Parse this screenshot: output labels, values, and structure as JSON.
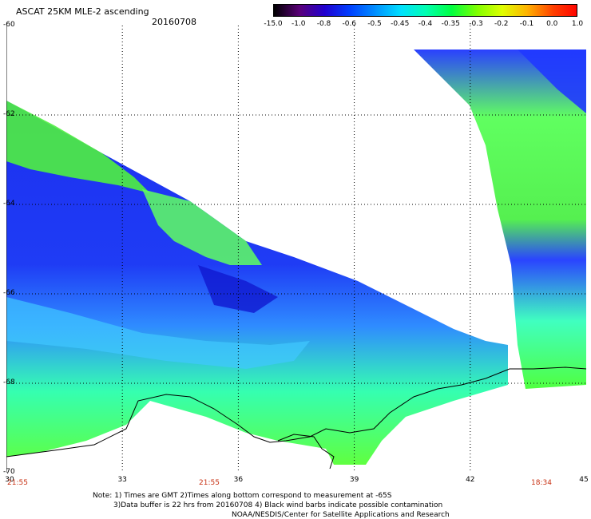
{
  "header": {
    "title": "ASCAT 25KM MLE-2 ascending",
    "date": "20160708"
  },
  "colorbar": {
    "labels": [
      "-15.0",
      "-1.0",
      "-0.8",
      "-0.6",
      "-0.5",
      "-0.45",
      "-0.4",
      "-0.35",
      "-0.3",
      "-0.2",
      "-0.1",
      "0.0",
      "1.0"
    ],
    "colors": [
      "#000000",
      "#5a0078",
      "#2000d0",
      "#0040ff",
      "#0090ff",
      "#00e0ff",
      "#00ffb0",
      "#00ff40",
      "#80ff00",
      "#e0ff00",
      "#ffb000",
      "#ff4000",
      "#ff0000"
    ]
  },
  "map": {
    "lat_labels": [
      "-60",
      "-62",
      "-64",
      "-66",
      "-68",
      "-70"
    ],
    "lon_labels": [
      "30",
      "33",
      "36",
      "39",
      "42",
      "45"
    ],
    "time_labels": [
      "21:55",
      "21:55",
      "18:34"
    ],
    "lon_range": [
      30,
      45
    ],
    "lat_range": [
      -70,
      -60
    ]
  },
  "notes": {
    "line1": "Note: 1) Times are GMT 2)Times along bottom correspond to measurement at -65S",
    "line2": "3)Data buffer is 22 hrs from 20160708 4) Black wind barbs indicate possible contamination",
    "line3": "NOAA/NESDIS/Center for Satellite Applications and Research"
  }
}
